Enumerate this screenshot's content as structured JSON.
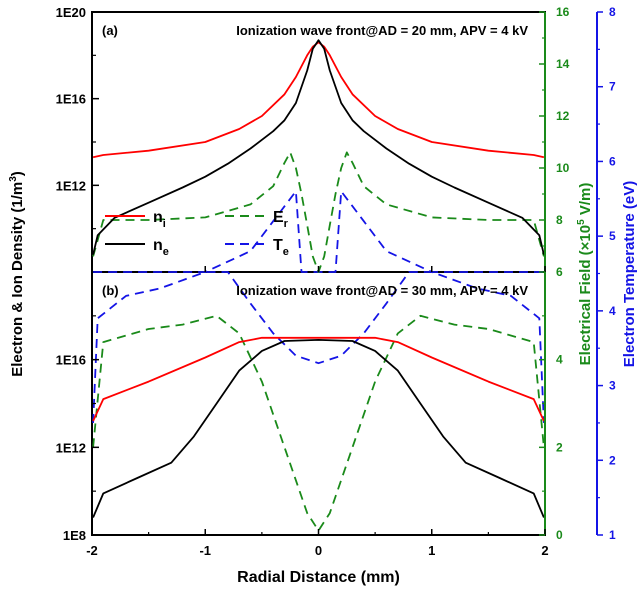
{
  "chart_data": {
    "type": "line",
    "xlabel": "Radial Distance (mm)",
    "xlim": [
      -2,
      2
    ],
    "xticks": [
      "-2",
      "-1",
      "0",
      "1",
      "2"
    ],
    "ylabel_left": "Electron & Ion Density (1/m",
    "ylabel_left_sup": "3",
    "ylabel_left_end": ")",
    "ylabel_mid": "Electrical Field (×10",
    "ylabel_mid_sup": "5",
    "ylabel_mid_end": " V/m)",
    "ylabel_right": "Electron Temperature (eV)",
    "colors": {
      "ni": "#ff0000",
      "ne": "#000000",
      "Er": "#1a8a1a",
      "Te": "#1414e6",
      "mid_axis": "#1a8a1a",
      "right_axis": "#1414e6"
    },
    "legend": {
      "placement": "lower-left of panel (a)",
      "entries": [
        {
          "key": "ni",
          "main": "n",
          "sub": "i"
        },
        {
          "key": "Er",
          "main": "E",
          "sub": "r"
        },
        {
          "key": "ne",
          "main": "n",
          "sub": "e"
        },
        {
          "key": "Te",
          "main": "T",
          "sub": "e"
        }
      ]
    },
    "right_axis": {
      "ylim": [
        1,
        8
      ],
      "ticks": [
        "1",
        "2",
        "3",
        "4",
        "5",
        "6",
        "7",
        "8"
      ]
    },
    "panels": [
      {
        "label": "(a)",
        "title": "Ionization wave front@AD = 20 mm, APV = 4 kV",
        "left_ticks": [
          "1E20",
          "1E16",
          "1E12"
        ],
        "left_log_range": [
          8,
          20
        ],
        "mid_ylim": [
          6,
          16
        ],
        "mid_ticks": [
          "6",
          "8",
          "10",
          "12",
          "14",
          "16"
        ],
        "series": {
          "ni": {
            "x": [
              -1.99,
              -1.9,
              -1.5,
              -1.0,
              -0.7,
              -0.5,
              -0.3,
              -0.2,
              -0.1,
              -0.05,
              0,
              0.05,
              0.1,
              0.2,
              0.3,
              0.5,
              0.7,
              1.0,
              1.5,
              1.9,
              1.99
            ],
            "logy": [
              13.3,
              13.4,
              13.6,
              14.0,
              14.6,
              15.2,
              16.2,
              17.0,
              18.0,
              18.4,
              18.6,
              18.4,
              18.0,
              17.0,
              16.2,
              15.2,
              14.6,
              14.0,
              13.6,
              13.4,
              13.3
            ]
          },
          "ne": {
            "x": [
              -1.99,
              -1.95,
              -1.8,
              -1.5,
              -1.2,
              -1.0,
              -0.8,
              -0.6,
              -0.4,
              -0.3,
              -0.2,
              -0.1,
              -0.05,
              0,
              0.05,
              0.1,
              0.2,
              0.3,
              0.4,
              0.6,
              0.8,
              1.0,
              1.2,
              1.5,
              1.8,
              1.95,
              1.99
            ],
            "logy": [
              8.8,
              9.7,
              10.5,
              11.2,
              11.9,
              12.4,
              13.0,
              13.7,
              14.5,
              15.0,
              15.8,
              17.3,
              18.3,
              18.7,
              18.3,
              17.3,
              15.8,
              15.0,
              14.5,
              13.7,
              13.0,
              12.4,
              11.9,
              11.2,
              10.5,
              9.7,
              8.8
            ]
          },
          "Er": {
            "x": [
              -1.99,
              -1.9,
              -1.5,
              -1.0,
              -0.6,
              -0.4,
              -0.3,
              -0.25,
              -0.2,
              -0.15,
              -0.1,
              -0.05,
              0,
              0.05,
              0.1,
              0.15,
              0.2,
              0.25,
              0.3,
              0.4,
              0.6,
              1.0,
              1.5,
              1.9,
              1.99
            ],
            "y": [
              6.6,
              8.0,
              8.0,
              8.1,
              8.6,
              9.3,
              10.2,
              10.6,
              10.0,
              9.0,
              7.8,
              6.6,
              6.0,
              6.6,
              7.8,
              9.0,
              10.0,
              10.6,
              10.2,
              9.3,
              8.6,
              8.1,
              8.0,
              8.0,
              6.6
            ]
          },
          "Te": {
            "x": [
              -1.99,
              -1.95,
              -1.8,
              -1.5,
              -1.0,
              -0.6,
              -0.4,
              -0.2,
              -0.15,
              -0.1,
              0,
              0.1,
              0.15,
              0.2,
              0.4,
              0.6,
              1.0,
              1.5,
              1.8,
              1.95,
              1.99
            ],
            "y": [
              3.6,
              4.0,
              4.15,
              4.3,
              4.5,
              4.8,
              5.2,
              5.6,
              4.4,
              3.2,
              3.0,
              3.2,
              4.4,
              5.6,
              5.2,
              4.8,
              4.5,
              4.3,
              4.15,
              4.0,
              3.6
            ]
          }
        }
      },
      {
        "label": "(b)",
        "title": "Ionization wave front@AD = 30 mm, APV = 4 kV",
        "left_ticks": [
          "1E16",
          "1E12",
          "1E8"
        ],
        "left_log_range": [
          8,
          20
        ],
        "mid_ylim": [
          0,
          6
        ],
        "mid_ticks": [
          "0",
          "2",
          "4"
        ],
        "series": {
          "ni": {
            "x": [
              -1.99,
              -1.9,
              -1.5,
              -1.0,
              -0.7,
              -0.5,
              0,
              0.5,
              0.7,
              1.0,
              1.5,
              1.9,
              1.99
            ],
            "logy": [
              13.2,
              14.2,
              15.0,
              16.1,
              16.8,
              17.0,
              17.0,
              17.0,
              16.8,
              16.1,
              15.0,
              14.2,
              13.2
            ]
          },
          "ne": {
            "x": [
              -1.99,
              -1.9,
              -1.6,
              -1.3,
              -1.1,
              -0.9,
              -0.7,
              -0.5,
              -0.3,
              0,
              0.3,
              0.5,
              0.7,
              0.9,
              1.1,
              1.3,
              1.6,
              1.9,
              1.99
            ],
            "logy": [
              8.8,
              9.9,
              10.6,
              11.3,
              12.5,
              14.0,
              15.5,
              16.4,
              16.85,
              16.9,
              16.85,
              16.4,
              15.5,
              14.0,
              12.5,
              11.3,
              10.6,
              9.9,
              8.8
            ]
          },
          "Er": {
            "x": [
              -1.99,
              -1.9,
              -1.5,
              -1.2,
              -0.9,
              -0.7,
              -0.5,
              -0.3,
              -0.1,
              0,
              0.1,
              0.3,
              0.5,
              0.7,
              0.9,
              1.2,
              1.5,
              1.9,
              1.99
            ],
            "y": [
              2.0,
              4.4,
              4.7,
              4.8,
              5.0,
              4.6,
              3.5,
              2.0,
              0.5,
              0.1,
              0.5,
              2.0,
              3.5,
              4.6,
              5.0,
              4.8,
              4.7,
              4.4,
              2.0
            ]
          },
          "Te": {
            "x": [
              -1.99,
              -1.95,
              -1.7,
              -1.4,
              -1.0,
              -0.8,
              -0.6,
              -0.4,
              -0.2,
              0,
              0.2,
              0.4,
              0.6,
              0.8,
              1.0,
              1.4,
              1.7,
              1.95,
              1.99
            ],
            "y": [
              2.5,
              3.9,
              4.2,
              4.3,
              4.6,
              4.6,
              4.1,
              3.7,
              3.4,
              3.3,
              3.4,
              3.7,
              4.1,
              4.6,
              4.6,
              4.3,
              4.2,
              3.9,
              2.5
            ]
          }
        }
      }
    ]
  }
}
